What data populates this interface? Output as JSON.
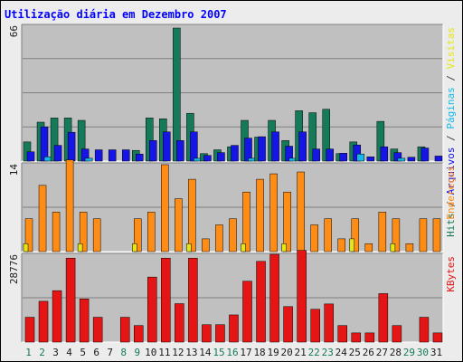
{
  "chart_data": {
    "type": "bar",
    "title": "Utilização diária em Dezembro 2007",
    "categories": [
      "1",
      "2",
      "3",
      "4",
      "5",
      "6",
      "7",
      "8",
      "9",
      "10",
      "11",
      "12",
      "13",
      "14",
      "15",
      "16",
      "17",
      "18",
      "19",
      "20",
      "21",
      "22",
      "23",
      "24",
      "25",
      "26",
      "27",
      "28",
      "29",
      "30",
      "31"
    ],
    "weekend_days": [
      1,
      2,
      8,
      9,
      15,
      16,
      22,
      23,
      29,
      30
    ],
    "panels": [
      {
        "id": "top",
        "ymax_label": "66",
        "ymax": 66,
        "series": [
          {
            "name": "Hits",
            "color": "#157a5a",
            "values": [
              9.5,
              19.3,
              21.4,
              21.4,
              20.2,
              0,
              0,
              0,
              5.3,
              21.4,
              21.0,
              66,
              23.7,
              3.7,
              5.6,
              7.1,
              20.2,
              11.9,
              20.2,
              10.2,
              25.0,
              24.0,
              25.7,
              3.7,
              9.5,
              0,
              19.7,
              6.0,
              0,
              7.1,
              0
            ]
          },
          {
            "name": "Arquivos",
            "color": "#1515e6",
            "values": [
              4.6,
              17.0,
              7.8,
              14.3,
              6.0,
              5.6,
              5.6,
              5.6,
              3.5,
              10.2,
              14.5,
              10.2,
              14.5,
              2.8,
              4.2,
              7.8,
              11.4,
              12.1,
              14.5,
              7.4,
              14.5,
              6.0,
              6.0,
              3.9,
              8.0,
              2.1,
              7.1,
              4.2,
              1.9,
              6.5,
              2.5
            ]
          },
          {
            "name": "Páginas",
            "color": "#15b8e6",
            "values": [
              0,
              2.1,
              0,
              0,
              1.4,
              0,
              0,
              0,
              0,
              0,
              0,
              0,
              1.4,
              0,
              0,
              0,
              1.4,
              0,
              0,
              1.4,
              0,
              0,
              0,
              0,
              3.5,
              0,
              0,
              1.4,
              0,
              0,
              0
            ]
          }
        ],
        "label_parts": [
          {
            "text": "Hits",
            "color": "#157a5a"
          },
          {
            "text": " / ",
            "color": "#404040"
          },
          {
            "text": "Arquivos",
            "color": "#1515e6"
          },
          {
            "text": " / ",
            "color": "#404040"
          },
          {
            "text": "Páginas",
            "color": "#15b8e6"
          },
          {
            "text": " / ",
            "color": "#404040"
          },
          {
            "text": "Visitas",
            "color": "#e6e615"
          }
        ]
      },
      {
        "id": "middle",
        "ymax_label": "14",
        "ymax": 14,
        "series": [
          {
            "name": "Endereços",
            "color": "#ff8c15",
            "values": [
              5.4,
              10.9,
              6.5,
              15.1,
              6.5,
              5.4,
              0,
              0,
              5.4,
              6.5,
              14.3,
              8.7,
              11.9,
              2.1,
              4.4,
              5.4,
              9.8,
              11.9,
              12.8,
              9.8,
              13.1,
              4.4,
              5.4,
              2.1,
              5.4,
              1.3,
              6.5,
              5.4,
              1.3,
              5.4,
              5.4
            ]
          },
          {
            "name": "Visitas",
            "color": "#e6e615",
            "values": [
              1.3,
              0,
              0,
              0,
              1.3,
              0,
              0,
              0,
              1.3,
              0,
              0,
              0,
              1.3,
              0,
              0,
              0,
              1.3,
              0,
              0,
              1.3,
              0,
              0,
              0,
              0,
              2.1,
              0,
              0,
              1.3,
              0,
              0,
              0
            ]
          }
        ],
        "label_parts": [
          {
            "text": "Endereços",
            "color": "#ff8c15"
          }
        ]
      },
      {
        "id": "bottom",
        "ymax_label": "28776",
        "ymax": 28776,
        "series": [
          {
            "name": "KBytes",
            "color": "#e61515",
            "values": [
              8400,
              13800,
              17400,
              28400,
              14600,
              8400,
              0,
              8400,
              5600,
              22000,
              28400,
              13000,
              28400,
              5900,
              5900,
              9200,
              20600,
              27300,
              29700,
              12000,
              31000,
              11100,
              12900,
              5600,
              3100,
              3100,
              16400,
              5600,
              0,
              8400,
              3100
            ]
          }
        ],
        "label_parts": [
          {
            "text": "KBytes",
            "color": "#e61515"
          }
        ]
      }
    ],
    "weekday_color": "#1a1a1a",
    "weekend_color": "#157a5a"
  }
}
